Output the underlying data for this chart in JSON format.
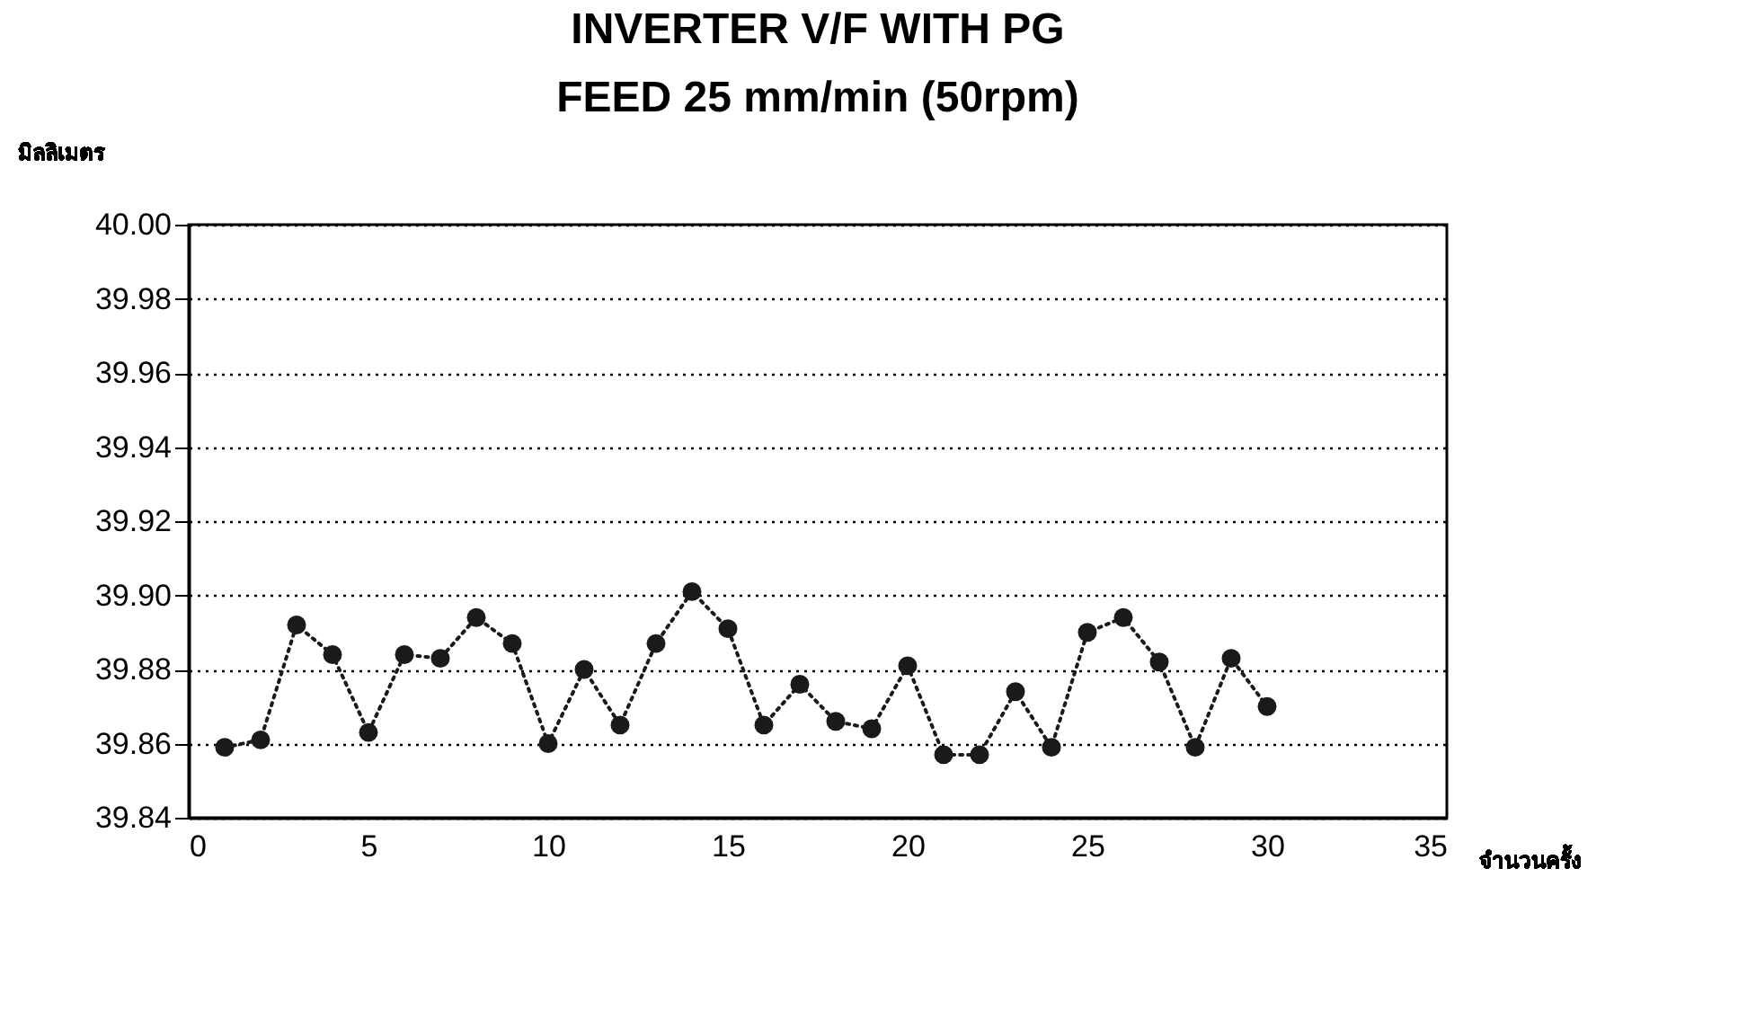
{
  "chart_data": {
    "type": "line",
    "title": "INVERTER V/F WITH PG",
    "subtitle": "FEED 25 mm/min (50rpm)",
    "xlabel": "จำนวนครั้ง",
    "ylabel": "มิลลิเมตร",
    "x": [
      1,
      2,
      3,
      4,
      5,
      6,
      7,
      8,
      9,
      10,
      11,
      12,
      13,
      14,
      15,
      16,
      17,
      18,
      19,
      20,
      21,
      22,
      23,
      24,
      25,
      26,
      27,
      28,
      29,
      30
    ],
    "series": [
      {
        "color": "#1a1a1a",
        "values": [
          39.859,
          39.861,
          39.892,
          39.884,
          39.863,
          39.884,
          39.883,
          39.894,
          39.887,
          39.86,
          39.88,
          39.865,
          39.887,
          39.901,
          39.891,
          39.865,
          39.876,
          39.866,
          39.864,
          39.881,
          39.857,
          39.857,
          39.874,
          39.859,
          39.89,
          39.894,
          39.882,
          39.859,
          39.883,
          39.87
        ]
      }
    ],
    "xlim": [
      0,
      35
    ],
    "xticks": [
      0,
      5,
      10,
      15,
      20,
      25,
      30,
      35
    ],
    "ylim": [
      39.84,
      40.0
    ],
    "yticks": [
      {
        "value": 39.84,
        "label": "39.84"
      },
      {
        "value": 39.86,
        "label": "39.86"
      },
      {
        "value": 39.88,
        "label": "39.88"
      },
      {
        "value": 39.9,
        "label": "39.90"
      },
      {
        "value": 39.92,
        "label": "39.92"
      },
      {
        "value": 39.94,
        "label": "39.94"
      },
      {
        "value": 39.96,
        "label": "39.96"
      },
      {
        "value": 39.98,
        "label": "39.98"
      },
      {
        "value": 40.0,
        "label": "40.00"
      }
    ],
    "grid": "y",
    "marker": "circle",
    "line_style": "dotted",
    "legend": false
  }
}
